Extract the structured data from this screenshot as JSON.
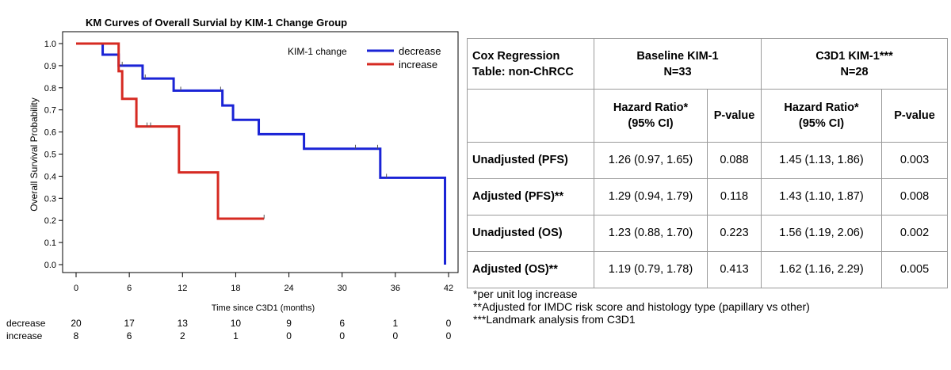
{
  "chart_data": {
    "type": "line",
    "title": "KM Curves of Overall Survial by KIM-1 Change Group",
    "xlabel": "Time since C3D1 (months)",
    "ylabel": "Overall Survival Probability",
    "xlim": [
      0,
      42
    ],
    "ylim": [
      0,
      1
    ],
    "x_ticks": [
      "0",
      "6",
      "12",
      "18",
      "24",
      "30",
      "36",
      "42"
    ],
    "y_ticks": [
      "0.0",
      "0.1",
      "0.2",
      "0.3",
      "0.4",
      "0.5",
      "0.6",
      "0.7",
      "0.8",
      "0.9",
      "1.0"
    ],
    "legend_title": "KIM-1 change",
    "legend_position": "top-right",
    "series": [
      {
        "name": "decrease",
        "color": "#1a23d6",
        "steps": [
          [
            0,
            1.0
          ],
          [
            3,
            0.95
          ],
          [
            4.8,
            0.9
          ],
          [
            7.5,
            0.842
          ],
          [
            11,
            0.787
          ],
          [
            16.5,
            0.72
          ],
          [
            17.7,
            0.655
          ],
          [
            20.6,
            0.59
          ],
          [
            25.7,
            0.524
          ],
          [
            34.3,
            0.393
          ],
          [
            41.6,
            0.0
          ]
        ],
        "censored": [
          [
            5.2,
            0.9
          ],
          [
            7.8,
            0.842
          ],
          [
            11.8,
            0.787
          ],
          [
            16.3,
            0.787
          ],
          [
            31.5,
            0.524
          ],
          [
            34.0,
            0.524
          ],
          [
            35.0,
            0.393
          ]
        ]
      },
      {
        "name": "increase",
        "color": "#d62a22",
        "steps": [
          [
            0,
            1.0
          ],
          [
            4.8,
            0.875
          ],
          [
            5.2,
            0.75
          ],
          [
            6.8,
            0.625
          ],
          [
            11.6,
            0.417
          ],
          [
            16.0,
            0.208
          ],
          [
            21.2,
            0.208
          ]
        ],
        "censored": [
          [
            8.0,
            0.625
          ],
          [
            8.4,
            0.625
          ],
          [
            21.2,
            0.208
          ]
        ]
      }
    ],
    "risk_table": {
      "times": [
        "0",
        "6",
        "12",
        "18",
        "24",
        "30",
        "36",
        "42"
      ],
      "rows": [
        {
          "label": "decrease",
          "counts": [
            "20",
            "17",
            "13",
            "10",
            "9",
            "6",
            "1",
            "0"
          ]
        },
        {
          "label": "increase",
          "counts": [
            "8",
            "6",
            "2",
            "1",
            "0",
            "0",
            "0",
            "0"
          ]
        }
      ]
    }
  },
  "cox_table": {
    "corner": [
      "Cox Regression",
      "Table: non-ChRCC"
    ],
    "group1": [
      "Baseline KIM-1",
      "N=33"
    ],
    "group2": [
      "C3D1 KIM-1***",
      "N=28"
    ],
    "hr_header": [
      "Hazard Ratio*",
      "(95% CI)"
    ],
    "p_header": "P-value",
    "rows": [
      {
        "label": "Unadjusted (PFS)",
        "hr1": "1.26 (0.97, 1.65)",
        "p1": "0.088",
        "hr2": "1.45 (1.13, 1.86)",
        "p2": "0.003"
      },
      {
        "label": "Adjusted (PFS)**",
        "hr1": "1.29 (0.94, 1.79)",
        "p1": "0.118",
        "hr2": "1.43 (1.10, 1.87)",
        "p2": "0.008"
      },
      {
        "label": "Unadjusted (OS)",
        "hr1": "1.23 (0.88, 1.70)",
        "p1": "0.223",
        "hr2": "1.56 (1.19, 2.06)",
        "p2": "0.002"
      },
      {
        "label": "Adjusted (OS)**",
        "hr1": "1.19 (0.79, 1.78)",
        "p1": "0.413",
        "hr2": "1.62 (1.16, 2.29)",
        "p2": "0.005"
      }
    ]
  },
  "footnotes": [
    "*per unit log increase",
    "**Adjusted for IMDC risk score and histology type (papillary vs other)",
    "***Landmark analysis from C3D1"
  ]
}
